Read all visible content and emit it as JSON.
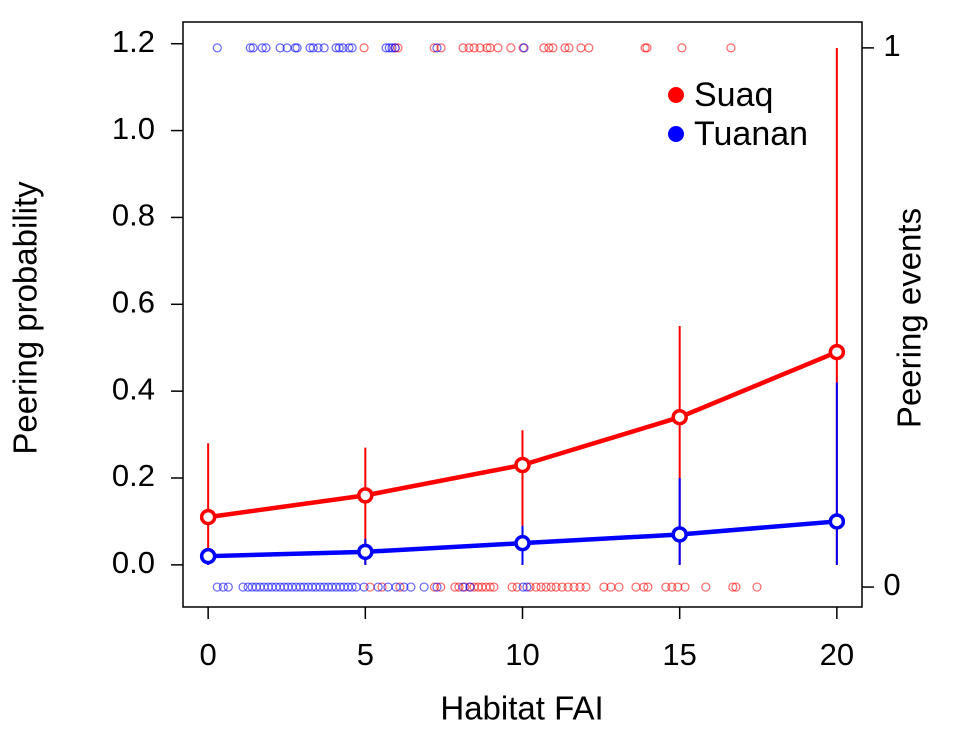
{
  "chart_data": {
    "type": "line",
    "xlabel": "Habitat FAI",
    "ylabel": "Peering probability",
    "y2label": "Peering events",
    "xlim": [
      -0.8,
      20.8
    ],
    "ylim": [
      -0.097,
      1.25
    ],
    "y2lim": [
      -0.037,
      1.048
    ],
    "xticks": [
      0,
      5,
      10,
      15,
      20
    ],
    "yticks": [
      {
        "value": 0,
        "label": "0.0"
      },
      0.2,
      0.4,
      0.6,
      0.8,
      {
        "value": 1,
        "label": "1.0"
      },
      1.2
    ],
    "y2ticks": [
      0,
      1
    ],
    "legend": "upper right",
    "series": [
      {
        "name": "Suaq",
        "color": "#ff0000",
        "x": [
          0,
          5,
          10,
          15,
          20
        ],
        "values": [
          0.11,
          0.16,
          0.23,
          0.34,
          0.49
        ],
        "lower": [
          0,
          0,
          0,
          0,
          0
        ],
        "upper": [
          0.28,
          0.27,
          0.31,
          0.55,
          1.19
        ]
      },
      {
        "name": "Tuanan",
        "color": "#0000ff",
        "x": [
          0,
          5,
          10,
          15,
          20
        ],
        "values": [
          0.02,
          0.03,
          0.05,
          0.07,
          0.1
        ],
        "lower": [
          0,
          0,
          0,
          0,
          0
        ],
        "upper": [
          0.03,
          0.06,
          0.09,
          0.2,
          0.42
        ]
      }
    ],
    "events": [
      {
        "color": "#ff0000",
        "axis": "y2",
        "x": [
          4.96,
          5.95,
          6.04,
          7.19,
          7.41,
          8.11,
          8.3,
          8.46,
          8.65,
          8.87,
          8.97,
          9.22,
          9.63,
          10.02,
          10.68,
          10.84,
          10.97,
          11.35,
          11.48,
          11.86,
          12.11,
          13.9,
          13.96,
          15.07,
          16.63,
          5.15,
          5.53,
          6.1,
          7.2,
          7.4,
          7.85,
          7.98,
          8.17,
          8.33,
          8.46,
          8.59,
          8.71,
          8.84,
          8.97,
          9.09,
          9.67,
          9.83,
          10.24,
          10.43,
          10.59,
          10.75,
          10.91,
          11.07,
          11.26,
          11.45,
          11.64,
          11.83,
          12.02,
          12.59,
          12.81,
          13.07,
          13.61,
          13.86,
          13.99,
          14.56,
          14.75,
          14.94,
          15.17,
          15.83,
          16.69,
          16.79,
          17.46
        ],
        "values": [
          1,
          1,
          1,
          1,
          1,
          1,
          1,
          1,
          1,
          1,
          1,
          1,
          1,
          1,
          1,
          1,
          1,
          1,
          1,
          1,
          1,
          1,
          1,
          1,
          1,
          0,
          0,
          0,
          0,
          0,
          0,
          0,
          0,
          0,
          0,
          0,
          0,
          0,
          0,
          0,
          0,
          0,
          0,
          0,
          0,
          0,
          0,
          0,
          0,
          0,
          0,
          0,
          0,
          0,
          0,
          0,
          0,
          0,
          0,
          0,
          0,
          0,
          0,
          0,
          0,
          0,
          0
        ]
      },
      {
        "color": "#0000ff",
        "axis": "y2",
        "x": [
          0.29,
          1.34,
          1.43,
          1.72,
          1.84,
          2.29,
          2.51,
          2.77,
          2.83,
          3.24,
          3.34,
          3.5,
          3.69,
          4.07,
          4.17,
          4.29,
          4.48,
          4.58,
          5.66,
          5.76,
          5.85,
          5.95,
          7.28,
          10.05,
          0.29,
          0.48,
          0.64,
          1.11,
          1.27,
          1.4,
          1.53,
          1.65,
          1.78,
          1.91,
          2.03,
          2.16,
          2.29,
          2.42,
          2.54,
          2.67,
          2.8,
          2.93,
          3.05,
          3.18,
          3.31,
          3.43,
          3.56,
          3.69,
          3.82,
          3.94,
          4.07,
          4.2,
          4.32,
          4.45,
          4.58,
          4.71,
          4.96,
          5.41,
          5.72,
          5.98,
          6.23,
          6.45,
          6.87,
          7.28,
          8.11,
          8.33,
          10.02,
          10.14
        ],
        "values": [
          1,
          1,
          1,
          1,
          1,
          1,
          1,
          1,
          1,
          1,
          1,
          1,
          1,
          1,
          1,
          1,
          1,
          1,
          1,
          1,
          1,
          1,
          1,
          1,
          0,
          0,
          0,
          0,
          0,
          0,
          0,
          0,
          0,
          0,
          0,
          0,
          0,
          0,
          0,
          0,
          0,
          0,
          0,
          0,
          0,
          0,
          0,
          0,
          0,
          0,
          0,
          0,
          0,
          0,
          0,
          0,
          0,
          0,
          0,
          0,
          0,
          0,
          0,
          0,
          0,
          0,
          0,
          0
        ]
      }
    ]
  }
}
